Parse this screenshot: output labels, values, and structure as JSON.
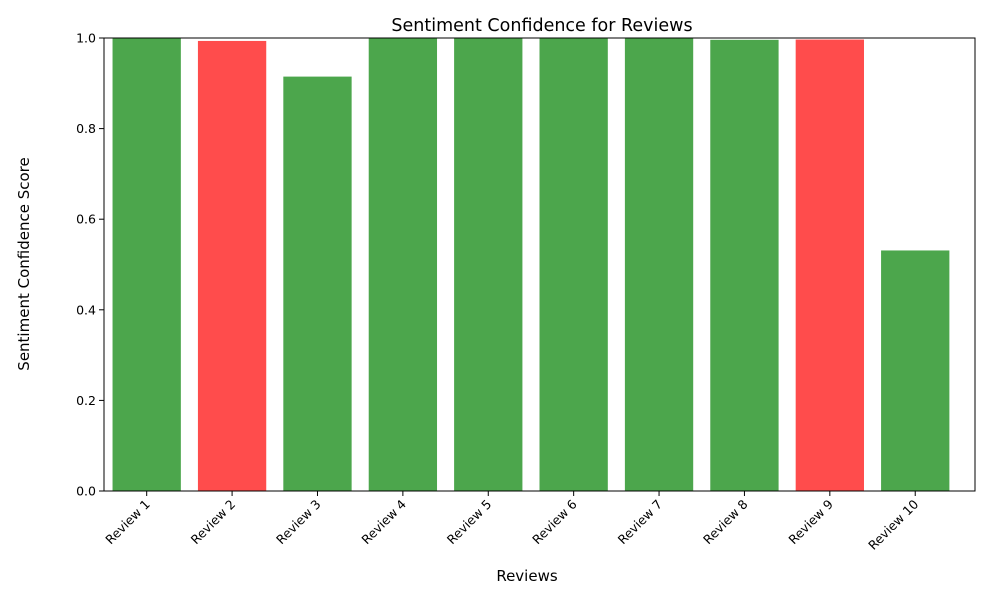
{
  "chart_data": {
    "type": "bar",
    "title": "Sentiment Confidence for Reviews",
    "xlabel": "Reviews",
    "ylabel": "Sentiment Confidence Score",
    "categories": [
      "Review 1",
      "Review 2",
      "Review 3",
      "Review 4",
      "Review 5",
      "Review 6",
      "Review 7",
      "Review 8",
      "Review 9",
      "Review 10"
    ],
    "values": [
      0.9999,
      0.9935,
      0.9148,
      0.9999,
      0.9999,
      0.9999,
      0.9999,
      0.996,
      0.9966,
      0.531
    ],
    "sentiments": [
      "positive",
      "negative",
      "positive",
      "positive",
      "positive",
      "positive",
      "positive",
      "positive",
      "negative",
      "positive"
    ],
    "colors": {
      "positive": "#4ca64c",
      "negative": "#ff4c4c"
    },
    "ylim": [
      0.0,
      1.0
    ],
    "yticks": [
      "0.0",
      "0.2",
      "0.4",
      "0.6",
      "0.8",
      "1.0"
    ],
    "ytick_values": [
      0.0,
      0.2,
      0.4,
      0.6,
      0.8,
      1.0
    ],
    "grid": false,
    "legend": "none"
  }
}
